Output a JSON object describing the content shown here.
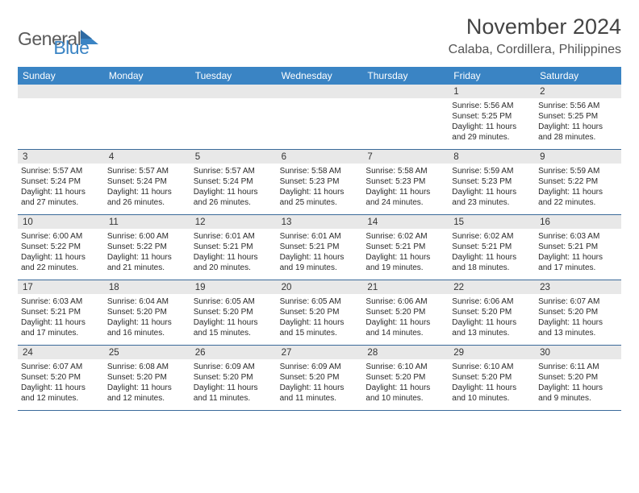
{
  "brand": {
    "part1": "General",
    "part2": "Blue"
  },
  "title": "November 2024",
  "location": "Calaba, Cordillera, Philippines",
  "colors": {
    "header_bg": "#3a84c4",
    "header_text": "#ffffff",
    "daynum_bg": "#e8e8e8",
    "row_border": "#3a6a9a",
    "text": "#2a2a2a",
    "logo_gray": "#5a5a5a",
    "logo_blue": "#3a84c4"
  },
  "typography": {
    "title_fontsize": 27,
    "location_fontsize": 16,
    "weekday_fontsize": 12,
    "daynum_fontsize": 11.5,
    "body_fontsize": 10
  },
  "weekdays": [
    "Sunday",
    "Monday",
    "Tuesday",
    "Wednesday",
    "Thursday",
    "Friday",
    "Saturday"
  ],
  "weeks": [
    [
      {
        "n": "",
        "sr": "",
        "ss": "",
        "dl": ""
      },
      {
        "n": "",
        "sr": "",
        "ss": "",
        "dl": ""
      },
      {
        "n": "",
        "sr": "",
        "ss": "",
        "dl": ""
      },
      {
        "n": "",
        "sr": "",
        "ss": "",
        "dl": ""
      },
      {
        "n": "",
        "sr": "",
        "ss": "",
        "dl": ""
      },
      {
        "n": "1",
        "sr": "Sunrise: 5:56 AM",
        "ss": "Sunset: 5:25 PM",
        "dl": "Daylight: 11 hours and 29 minutes."
      },
      {
        "n": "2",
        "sr": "Sunrise: 5:56 AM",
        "ss": "Sunset: 5:25 PM",
        "dl": "Daylight: 11 hours and 28 minutes."
      }
    ],
    [
      {
        "n": "3",
        "sr": "Sunrise: 5:57 AM",
        "ss": "Sunset: 5:24 PM",
        "dl": "Daylight: 11 hours and 27 minutes."
      },
      {
        "n": "4",
        "sr": "Sunrise: 5:57 AM",
        "ss": "Sunset: 5:24 PM",
        "dl": "Daylight: 11 hours and 26 minutes."
      },
      {
        "n": "5",
        "sr": "Sunrise: 5:57 AM",
        "ss": "Sunset: 5:24 PM",
        "dl": "Daylight: 11 hours and 26 minutes."
      },
      {
        "n": "6",
        "sr": "Sunrise: 5:58 AM",
        "ss": "Sunset: 5:23 PM",
        "dl": "Daylight: 11 hours and 25 minutes."
      },
      {
        "n": "7",
        "sr": "Sunrise: 5:58 AM",
        "ss": "Sunset: 5:23 PM",
        "dl": "Daylight: 11 hours and 24 minutes."
      },
      {
        "n": "8",
        "sr": "Sunrise: 5:59 AM",
        "ss": "Sunset: 5:23 PM",
        "dl": "Daylight: 11 hours and 23 minutes."
      },
      {
        "n": "9",
        "sr": "Sunrise: 5:59 AM",
        "ss": "Sunset: 5:22 PM",
        "dl": "Daylight: 11 hours and 22 minutes."
      }
    ],
    [
      {
        "n": "10",
        "sr": "Sunrise: 6:00 AM",
        "ss": "Sunset: 5:22 PM",
        "dl": "Daylight: 11 hours and 22 minutes."
      },
      {
        "n": "11",
        "sr": "Sunrise: 6:00 AM",
        "ss": "Sunset: 5:22 PM",
        "dl": "Daylight: 11 hours and 21 minutes."
      },
      {
        "n": "12",
        "sr": "Sunrise: 6:01 AM",
        "ss": "Sunset: 5:21 PM",
        "dl": "Daylight: 11 hours and 20 minutes."
      },
      {
        "n": "13",
        "sr": "Sunrise: 6:01 AM",
        "ss": "Sunset: 5:21 PM",
        "dl": "Daylight: 11 hours and 19 minutes."
      },
      {
        "n": "14",
        "sr": "Sunrise: 6:02 AM",
        "ss": "Sunset: 5:21 PM",
        "dl": "Daylight: 11 hours and 19 minutes."
      },
      {
        "n": "15",
        "sr": "Sunrise: 6:02 AM",
        "ss": "Sunset: 5:21 PM",
        "dl": "Daylight: 11 hours and 18 minutes."
      },
      {
        "n": "16",
        "sr": "Sunrise: 6:03 AM",
        "ss": "Sunset: 5:21 PM",
        "dl": "Daylight: 11 hours and 17 minutes."
      }
    ],
    [
      {
        "n": "17",
        "sr": "Sunrise: 6:03 AM",
        "ss": "Sunset: 5:21 PM",
        "dl": "Daylight: 11 hours and 17 minutes."
      },
      {
        "n": "18",
        "sr": "Sunrise: 6:04 AM",
        "ss": "Sunset: 5:20 PM",
        "dl": "Daylight: 11 hours and 16 minutes."
      },
      {
        "n": "19",
        "sr": "Sunrise: 6:05 AM",
        "ss": "Sunset: 5:20 PM",
        "dl": "Daylight: 11 hours and 15 minutes."
      },
      {
        "n": "20",
        "sr": "Sunrise: 6:05 AM",
        "ss": "Sunset: 5:20 PM",
        "dl": "Daylight: 11 hours and 15 minutes."
      },
      {
        "n": "21",
        "sr": "Sunrise: 6:06 AM",
        "ss": "Sunset: 5:20 PM",
        "dl": "Daylight: 11 hours and 14 minutes."
      },
      {
        "n": "22",
        "sr": "Sunrise: 6:06 AM",
        "ss": "Sunset: 5:20 PM",
        "dl": "Daylight: 11 hours and 13 minutes."
      },
      {
        "n": "23",
        "sr": "Sunrise: 6:07 AM",
        "ss": "Sunset: 5:20 PM",
        "dl": "Daylight: 11 hours and 13 minutes."
      }
    ],
    [
      {
        "n": "24",
        "sr": "Sunrise: 6:07 AM",
        "ss": "Sunset: 5:20 PM",
        "dl": "Daylight: 11 hours and 12 minutes."
      },
      {
        "n": "25",
        "sr": "Sunrise: 6:08 AM",
        "ss": "Sunset: 5:20 PM",
        "dl": "Daylight: 11 hours and 12 minutes."
      },
      {
        "n": "26",
        "sr": "Sunrise: 6:09 AM",
        "ss": "Sunset: 5:20 PM",
        "dl": "Daylight: 11 hours and 11 minutes."
      },
      {
        "n": "27",
        "sr": "Sunrise: 6:09 AM",
        "ss": "Sunset: 5:20 PM",
        "dl": "Daylight: 11 hours and 11 minutes."
      },
      {
        "n": "28",
        "sr": "Sunrise: 6:10 AM",
        "ss": "Sunset: 5:20 PM",
        "dl": "Daylight: 11 hours and 10 minutes."
      },
      {
        "n": "29",
        "sr": "Sunrise: 6:10 AM",
        "ss": "Sunset: 5:20 PM",
        "dl": "Daylight: 11 hours and 10 minutes."
      },
      {
        "n": "30",
        "sr": "Sunrise: 6:11 AM",
        "ss": "Sunset: 5:20 PM",
        "dl": "Daylight: 11 hours and 9 minutes."
      }
    ]
  ]
}
